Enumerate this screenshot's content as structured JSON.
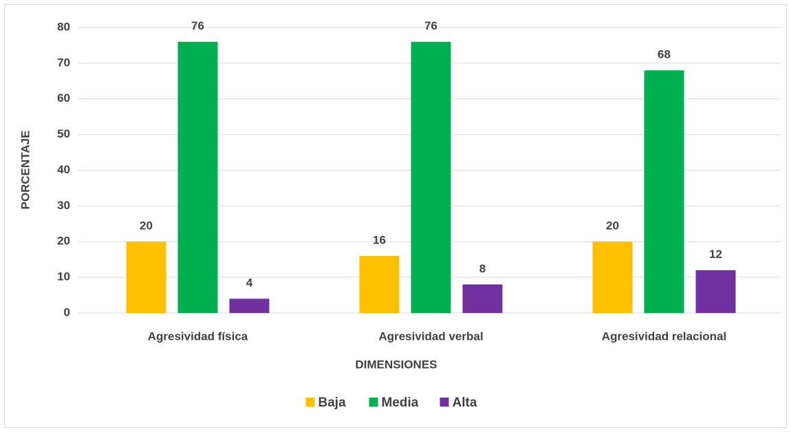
{
  "chart_data": {
    "type": "bar",
    "xlabel": "DIMENSIONES",
    "ylabel": "PORCENTAJE",
    "categories": [
      "Agresividad física",
      "Agresividad verbal",
      "Agresividad relacional"
    ],
    "series": [
      {
        "name": "Baja",
        "color": "#FFC000",
        "values": [
          20,
          16,
          20
        ]
      },
      {
        "name": "Media",
        "color": "#00B050",
        "values": [
          76,
          76,
          68
        ]
      },
      {
        "name": "Alta",
        "color": "#7030A0",
        "values": [
          4,
          8,
          12
        ]
      }
    ],
    "ylim": [
      0,
      80
    ],
    "yticks": [
      0,
      10,
      20,
      30,
      40,
      50,
      60,
      70,
      80
    ],
    "grid": true,
    "legend": "bottom",
    "data_labels": true
  }
}
